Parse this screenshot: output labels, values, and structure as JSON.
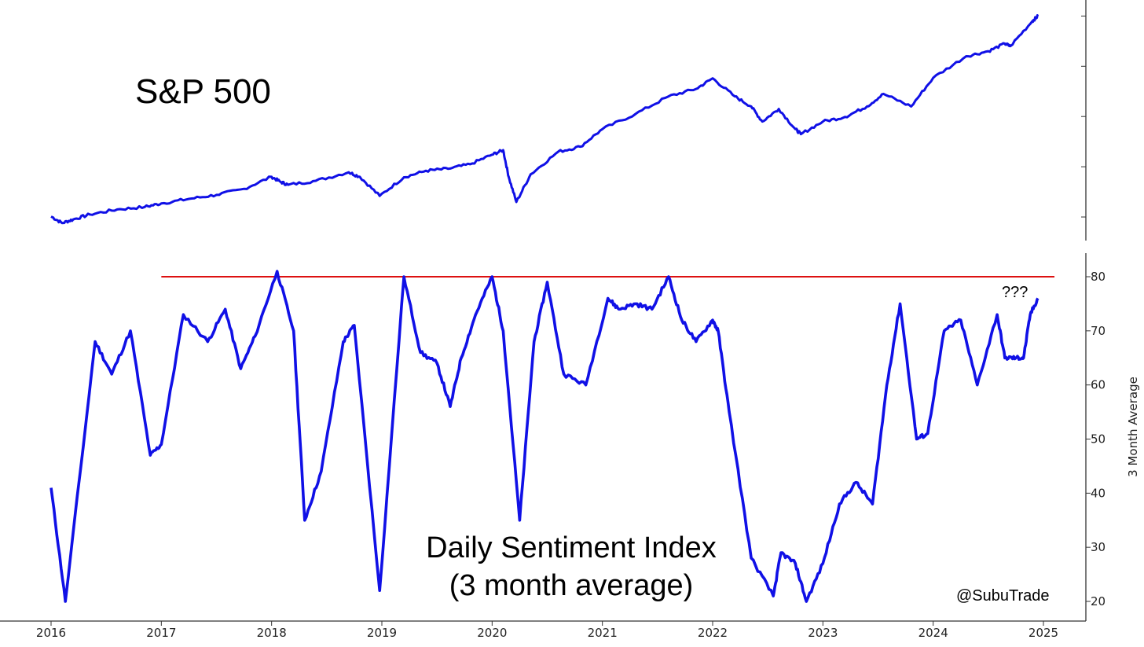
{
  "chart_data": [
    {
      "type": "line",
      "title": "S&P 500",
      "color": "#1010e6",
      "x": [
        2016.0,
        2016.1,
        2016.2,
        2016.35,
        2016.6,
        2016.85,
        2017.0,
        2017.25,
        2017.5,
        2017.75,
        2018.0,
        2018.08,
        2018.15,
        2018.4,
        2018.7,
        2018.8,
        2018.98,
        2019.2,
        2019.4,
        2019.6,
        2019.8,
        2020.0,
        2020.1,
        2020.15,
        2020.22,
        2020.35,
        2020.6,
        2020.8,
        2021.0,
        2021.3,
        2021.6,
        2021.85,
        2022.0,
        2022.2,
        2022.35,
        2022.45,
        2022.6,
        2022.75,
        2022.8,
        2023.0,
        2023.2,
        2023.4,
        2023.55,
        2023.8,
        2024.0,
        2024.3,
        2024.5,
        2024.65,
        2024.7,
        2024.9,
        2024.95
      ],
      "values": [
        2010,
        1880,
        1950,
        2050,
        2150,
        2200,
        2270,
        2360,
        2440,
        2560,
        2800,
        2700,
        2640,
        2720,
        2890,
        2800,
        2420,
        2790,
        2920,
        2960,
        3050,
        3240,
        3330,
        2800,
        2300,
        2850,
        3300,
        3400,
        3750,
        4050,
        4400,
        4550,
        4760,
        4400,
        4200,
        3900,
        4150,
        3750,
        3650,
        3900,
        3990,
        4200,
        4450,
        4200,
        4770,
        5200,
        5300,
        5450,
        5400,
        5900,
        6000
      ],
      "ylim": [
        1750,
        6100
      ]
    },
    {
      "type": "line",
      "title": "Daily Sentiment Index\n(3 month average)",
      "color": "#1010e6",
      "ylabel": "3 Month Average",
      "yticks": [
        20,
        30,
        40,
        50,
        60,
        70,
        80
      ],
      "ylim": [
        18,
        84.5
      ],
      "x_ticks": [
        "2016",
        "2017",
        "2018",
        "2019",
        "2020",
        "2021",
        "2022",
        "2023",
        "2024",
        "2025"
      ],
      "x": [
        2016.0,
        2016.13,
        2016.4,
        2016.55,
        2016.72,
        2016.9,
        2017.0,
        2017.2,
        2017.42,
        2017.58,
        2017.72,
        2017.85,
        2018.05,
        2018.2,
        2018.3,
        2018.45,
        2018.65,
        2018.75,
        2018.98,
        2019.2,
        2019.35,
        2019.5,
        2019.62,
        2019.72,
        2019.85,
        2020.0,
        2020.1,
        2020.25,
        2020.38,
        2020.5,
        2020.65,
        2020.85,
        2021.05,
        2021.15,
        2021.3,
        2021.45,
        2021.6,
        2021.72,
        2021.85,
        2022.0,
        2022.05,
        2022.15,
        2022.35,
        2022.55,
        2022.62,
        2022.75,
        2022.85,
        2023.0,
        2023.15,
        2023.3,
        2023.45,
        2023.58,
        2023.7,
        2023.85,
        2023.95,
        2024.1,
        2024.25,
        2024.4,
        2024.58,
        2024.65,
        2024.75,
        2024.82,
        2024.88,
        2024.95
      ],
      "values": [
        41,
        20,
        68,
        62,
        70,
        47,
        49,
        73,
        68,
        74,
        63,
        69,
        81,
        70,
        35,
        44,
        68,
        71,
        22,
        80,
        66,
        64,
        56,
        65,
        73,
        80,
        70,
        35,
        68,
        79,
        62,
        60,
        76,
        74,
        75,
        74,
        80,
        72,
        68,
        72,
        70,
        55,
        28,
        21,
        29,
        27,
        20,
        27,
        38,
        42,
        38,
        60,
        75,
        50,
        51,
        70,
        72,
        60,
        73,
        65,
        65,
        65,
        73,
        76
      ],
      "reference_line": {
        "value": 80,
        "x_start": 2017.0,
        "x_end": 2025.1,
        "color": "#dd1111"
      },
      "annotations": [
        {
          "text": "???"
        },
        {
          "text": "@SubuTrade"
        }
      ]
    }
  ]
}
